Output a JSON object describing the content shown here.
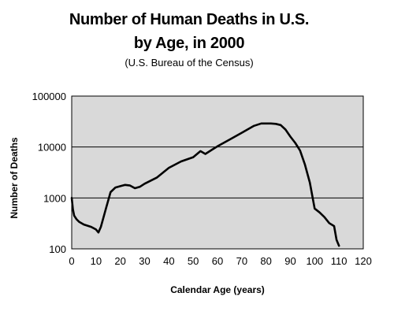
{
  "chart_data": {
    "type": "line",
    "title": "Number of Human Deaths in U.S.",
    "title_line2": "by Age, in 2000",
    "subtitle": "(U.S. Bureau of the Census)",
    "xlabel": "Calendar Age (years)",
    "ylabel": "Number of Deaths",
    "xlim": [
      0,
      120
    ],
    "ylim": [
      100,
      100000
    ],
    "yscale": "log",
    "grid": "horizontal",
    "plot_background": "#d9d9d9",
    "line_color": "#000000",
    "x_ticks": [
      0,
      10,
      20,
      30,
      40,
      50,
      60,
      70,
      80,
      90,
      100,
      110,
      120
    ],
    "y_ticks": [
      100,
      1000,
      10000,
      100000
    ],
    "y_tick_labels": [
      "100",
      "1000",
      "10000",
      "100000"
    ],
    "x": [
      0,
      0.5,
      1,
      2,
      3,
      5,
      8,
      10,
      11,
      12,
      14,
      16,
      18,
      20,
      22,
      24,
      26,
      28,
      30,
      35,
      40,
      45,
      50,
      53,
      55,
      58,
      60,
      65,
      70,
      75,
      78,
      80,
      82,
      84,
      86,
      88,
      90,
      92,
      94,
      96,
      98,
      100,
      102,
      104,
      106,
      108,
      109,
      110
    ],
    "y": [
      1000,
      600,
      450,
      380,
      340,
      300,
      270,
      240,
      210,
      270,
      600,
      1300,
      1600,
      1700,
      1800,
      1750,
      1550,
      1650,
      1900,
      2500,
      3900,
      5200,
      6300,
      8300,
      7300,
      9000,
      10300,
      14000,
      19000,
      26000,
      29000,
      29000,
      29000,
      28500,
      27000,
      22000,
      16000,
      12000,
      8500,
      4500,
      2000,
      620,
      520,
      420,
      320,
      280,
      150,
      115
    ]
  }
}
